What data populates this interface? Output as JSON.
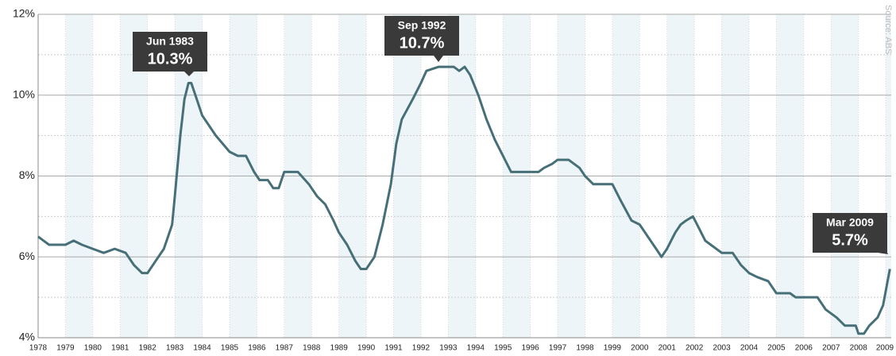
{
  "chart_data": {
    "type": "line",
    "source": "Source: ABS",
    "annotations": [
      {
        "date": "Jun 1983",
        "label": "10.3%"
      },
      {
        "date": "Sep 1992",
        "label": "10.7%"
      },
      {
        "date": "Mar 2009",
        "label": "5.7%"
      }
    ],
    "xlim": [
      1978,
      2009.2
    ],
    "xticks": [
      1978,
      1979,
      1980,
      1981,
      1982,
      1983,
      1984,
      1985,
      1986,
      1987,
      1988,
      1989,
      1990,
      1991,
      1992,
      1993,
      1994,
      1995,
      1996,
      1997,
      1998,
      1999,
      2000,
      2001,
      2002,
      2003,
      2004,
      2005,
      2006,
      2007,
      2008,
      2009
    ],
    "ylim": [
      4,
      12
    ],
    "yticks": [
      {
        "value": 4,
        "label": "4%"
      },
      {
        "value": 6,
        "label": "6%"
      },
      {
        "value": 8,
        "label": "8%"
      },
      {
        "value": 10,
        "label": "10%"
      },
      {
        "value": 12,
        "label": "12%"
      }
    ],
    "minor_yticks": [
      5,
      7,
      9,
      11
    ],
    "grid": true,
    "series": [
      {
        "color": "#466f78",
        "x": [
          1978.0,
          1978.2,
          1978.4,
          1979.0,
          1979.3,
          1979.6,
          1980.0,
          1980.4,
          1980.8,
          1981.2,
          1981.5,
          1981.8,
          1982.0,
          1982.3,
          1982.6,
          1982.9,
          1983.0,
          1983.2,
          1983.35,
          1983.5,
          1983.6,
          1983.8,
          1984.0,
          1984.5,
          1985.0,
          1985.3,
          1985.6,
          1985.9,
          1986.1,
          1986.4,
          1986.6,
          1986.8,
          1987.0,
          1987.5,
          1987.9,
          1988.2,
          1988.5,
          1988.8,
          1989.0,
          1989.3,
          1989.6,
          1989.8,
          1990.0,
          1990.3,
          1990.6,
          1990.9,
          1991.1,
          1991.3,
          1991.7,
          1992.0,
          1992.2,
          1992.65,
          1993.2,
          1993.4,
          1993.6,
          1993.8,
          1994.1,
          1994.4,
          1994.7,
          1995.0,
          1995.3,
          1996.0,
          1996.3,
          1996.5,
          1996.8,
          1997.0,
          1997.4,
          1997.8,
          1998.0,
          1998.3,
          1999.0,
          1999.3,
          1999.7,
          2000.0,
          2000.3,
          2000.6,
          2000.8,
          2001.0,
          2001.3,
          2001.5,
          2001.7,
          2001.95,
          2002.1,
          2002.4,
          2002.6,
          2003.0,
          2003.4,
          2003.7,
          2004.0,
          2004.3,
          2004.7,
          2005.0,
          2005.5,
          2005.7,
          2006.5,
          2006.8,
          2007.2,
          2007.5,
          2007.9,
          2008.0,
          2008.2,
          2008.4,
          2008.7,
          2008.9,
          2009.15
        ],
        "values": [
          6.5,
          6.4,
          6.3,
          6.3,
          6.4,
          6.3,
          6.2,
          6.1,
          6.2,
          6.1,
          5.8,
          5.6,
          5.6,
          5.9,
          6.2,
          6.8,
          7.5,
          9.0,
          9.9,
          10.3,
          10.3,
          9.9,
          9.5,
          9.0,
          8.6,
          8.5,
          8.5,
          8.1,
          7.9,
          7.9,
          7.7,
          7.7,
          8.1,
          8.1,
          7.8,
          7.5,
          7.3,
          6.9,
          6.6,
          6.3,
          5.9,
          5.7,
          5.7,
          6.0,
          6.8,
          7.8,
          8.8,
          9.4,
          9.9,
          10.3,
          10.6,
          10.7,
          10.7,
          10.6,
          10.7,
          10.5,
          10.0,
          9.4,
          8.9,
          8.5,
          8.1,
          8.1,
          8.1,
          8.2,
          8.3,
          8.4,
          8.4,
          8.2,
          8.0,
          7.8,
          7.8,
          7.4,
          6.9,
          6.8,
          6.5,
          6.2,
          6.0,
          6.2,
          6.6,
          6.8,
          6.9,
          7.0,
          6.8,
          6.4,
          6.3,
          6.1,
          6.1,
          5.8,
          5.6,
          5.5,
          5.4,
          5.1,
          5.1,
          5.0,
          5.0,
          4.7,
          4.5,
          4.3,
          4.3,
          4.1,
          4.1,
          4.3,
          4.5,
          4.8,
          5.7
        ]
      }
    ]
  }
}
